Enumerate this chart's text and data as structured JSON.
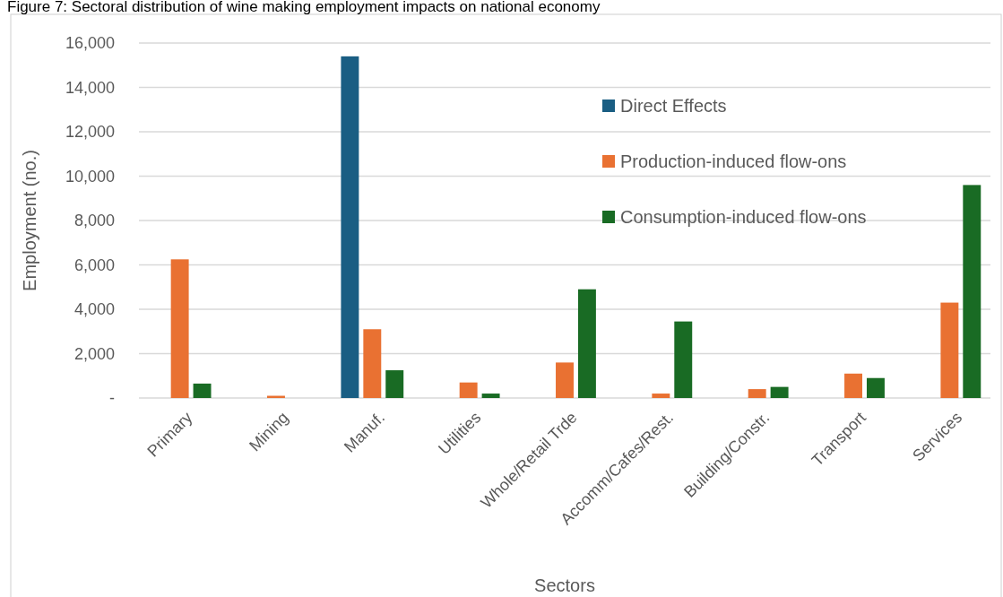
{
  "chart_data": {
    "type": "bar",
    "title": "Figure 7: Sectoral distribution of wine making employment impacts on national economy",
    "xlabel": "Sectors",
    "ylabel": "Employment (no.)",
    "categories": [
      "Primary",
      "Mining",
      "Manuf.",
      "Utilities",
      "Whole/Retail Trde",
      "Accomm/Cafes/Rest.",
      "Building/Constr.",
      "Transport",
      "Services"
    ],
    "series": [
      {
        "name": "Direct Effects",
        "color": "#1a5e83",
        "values": [
          0,
          0,
          15400,
          0,
          0,
          0,
          0,
          0,
          0
        ]
      },
      {
        "name": "Production-induced flow-ons",
        "color": "#e97132",
        "values": [
          6250,
          100,
          3100,
          700,
          1600,
          200,
          400,
          1100,
          4300
        ]
      },
      {
        "name": "Consumption-induced flow-ons",
        "color": "#196b24",
        "values": [
          650,
          0,
          1250,
          200,
          4900,
          3450,
          500,
          900,
          9600
        ]
      }
    ],
    "ylim": [
      0,
      16000
    ],
    "yticks": [
      {
        "value": 0,
        "label": "-"
      },
      {
        "value": 2000,
        "label": "2,000"
      },
      {
        "value": 4000,
        "label": "4,000"
      },
      {
        "value": 6000,
        "label": "6,000"
      },
      {
        "value": 8000,
        "label": "8,000"
      },
      {
        "value": 10000,
        "label": "10,000"
      },
      {
        "value": 12000,
        "label": "12,000"
      },
      {
        "value": 14000,
        "label": "14,000"
      },
      {
        "value": 16000,
        "label": "16,000"
      }
    ],
    "grid": "y",
    "legend": "top right"
  }
}
